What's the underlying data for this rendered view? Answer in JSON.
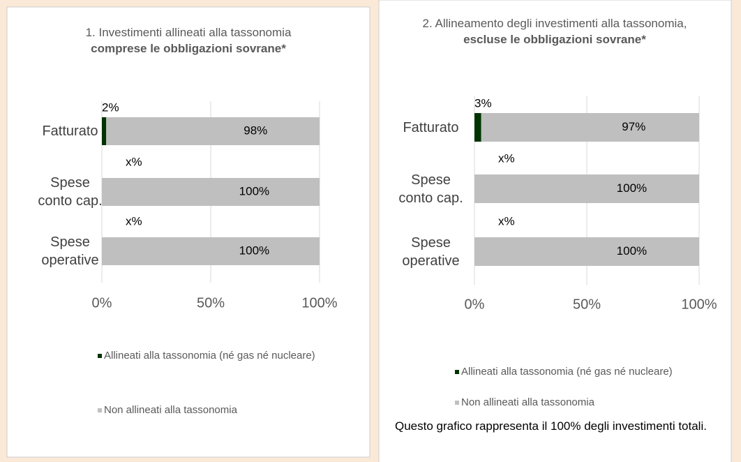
{
  "chart_data": [
    {
      "type": "bar",
      "stacked": true,
      "orientation": "horizontal",
      "title": "1. Investimenti allineati alla tassonomia",
      "title_emphasis": "comprese le obbligazioni sovrane*",
      "categories": [
        "Fatturato",
        "Spese conto cap.",
        "Spese operative"
      ],
      "series": [
        {
          "name": "Allineati alla tassonomia (né gas né nucleare)",
          "color": "#003300",
          "values": [
            2,
            0,
            0
          ],
          "value_labels": [
            "2%",
            "x%",
            "x%"
          ]
        },
        {
          "name": "Non allineati alla tassonomia",
          "color": "#bfbfbf",
          "values": [
            98,
            100,
            100
          ],
          "value_labels": [
            "98%",
            "100%",
            "100%"
          ]
        }
      ],
      "xlim": [
        0,
        100
      ],
      "xticks": [
        {
          "value": 0,
          "label": "0%"
        },
        {
          "value": 50,
          "label": "50%"
        },
        {
          "value": 100,
          "label": "100%"
        }
      ],
      "grid": true
    },
    {
      "type": "bar",
      "stacked": true,
      "orientation": "horizontal",
      "title": "2. Allineamento degli investimenti alla tassonomia,",
      "title_emphasis": "escluse le obbligazioni sovrane*",
      "categories": [
        "Fatturato",
        "Spese conto cap.",
        "Spese operative"
      ],
      "series": [
        {
          "name": "Allineati alla tassonomia (né gas né nucleare)",
          "color": "#003300",
          "values": [
            3,
            0,
            0
          ],
          "value_labels": [
            "3%",
            "x%",
            "x%"
          ]
        },
        {
          "name": "Non allineati alla tassonomia",
          "color": "#bfbfbf",
          "values": [
            97,
            100,
            100
          ],
          "value_labels": [
            "97%",
            "100%",
            "100%"
          ]
        }
      ],
      "xlim": [
        0,
        100
      ],
      "xticks": [
        {
          "value": 0,
          "label": "0%"
        },
        {
          "value": 50,
          "label": "50%"
        },
        {
          "value": 100,
          "label": "100%"
        }
      ],
      "grid": true,
      "note": "Questo grafico rappresenta il 100% degli investimenti totali."
    }
  ]
}
